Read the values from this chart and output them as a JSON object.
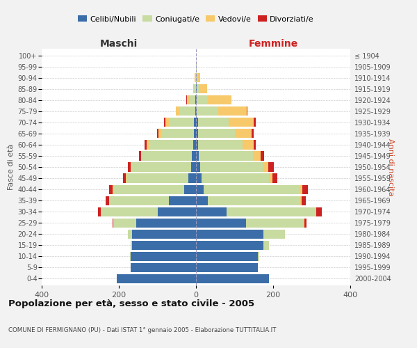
{
  "age_groups": [
    "0-4",
    "5-9",
    "10-14",
    "15-19",
    "20-24",
    "25-29",
    "30-34",
    "35-39",
    "40-44",
    "45-49",
    "50-54",
    "55-59",
    "60-64",
    "65-69",
    "70-74",
    "75-79",
    "80-84",
    "85-89",
    "90-94",
    "95-99",
    "100+"
  ],
  "birth_years": [
    "2000-2004",
    "1995-1999",
    "1990-1994",
    "1985-1989",
    "1980-1984",
    "1975-1979",
    "1970-1974",
    "1965-1969",
    "1960-1964",
    "1955-1959",
    "1950-1954",
    "1945-1949",
    "1940-1944",
    "1935-1939",
    "1930-1934",
    "1925-1929",
    "1920-1924",
    "1915-1919",
    "1910-1914",
    "1905-1909",
    "≤ 1904"
  ],
  "colors": {
    "celibi": "#3b6ea8",
    "coniugati": "#c8dba0",
    "vedovi": "#f7c96a",
    "divorziati": "#cc2222"
  },
  "males": {
    "celibi": [
      205,
      170,
      170,
      165,
      165,
      155,
      100,
      70,
      30,
      20,
      12,
      10,
      8,
      5,
      5,
      2,
      1,
      0,
      0,
      0,
      0
    ],
    "coniugati": [
      0,
      0,
      2,
      5,
      12,
      60,
      145,
      155,
      185,
      160,
      155,
      130,
      115,
      85,
      65,
      40,
      15,
      5,
      2,
      0,
      0
    ],
    "vedovi": [
      0,
      0,
      0,
      0,
      0,
      0,
      1,
      1,
      2,
      2,
      2,
      3,
      5,
      8,
      10,
      10,
      8,
      3,
      1,
      0,
      0
    ],
    "divorziati": [
      0,
      0,
      0,
      0,
      0,
      2,
      8,
      8,
      8,
      8,
      8,
      5,
      5,
      2,
      2,
      1,
      1,
      0,
      0,
      0,
      0
    ]
  },
  "females": {
    "nubili": [
      190,
      160,
      160,
      175,
      175,
      130,
      80,
      30,
      20,
      15,
      10,
      8,
      5,
      5,
      5,
      2,
      1,
      1,
      0,
      0,
      0
    ],
    "coniugate": [
      0,
      0,
      4,
      15,
      55,
      150,
      230,
      240,
      250,
      175,
      165,
      140,
      115,
      95,
      80,
      55,
      30,
      8,
      5,
      1,
      0
    ],
    "vedove": [
      0,
      0,
      0,
      0,
      0,
      1,
      2,
      3,
      5,
      8,
      12,
      20,
      30,
      45,
      65,
      75,
      60,
      20,
      5,
      1,
      0
    ],
    "divorziate": [
      0,
      0,
      0,
      0,
      1,
      5,
      15,
      12,
      15,
      12,
      15,
      8,
      5,
      5,
      5,
      2,
      1,
      0,
      0,
      0,
      0
    ]
  },
  "title": "Popolazione per età, sesso e stato civile - 2005",
  "subtitle": "COMUNE DI FERMIGNANO (PU) - Dati ISTAT 1° gennaio 2005 - Elaborazione TUTTITALIA.IT",
  "xlabel_left": "Maschi",
  "xlabel_right": "Femmine",
  "ylabel_left": "Fasce di età",
  "ylabel_right": "Anni di nascita",
  "xlim": 400,
  "legend_labels": [
    "Celibi/Nubili",
    "Coniugati/e",
    "Vedovi/e",
    "Divorziati/e"
  ],
  "bg_color": "#f2f2f2",
  "plot_bg": "#ffffff"
}
